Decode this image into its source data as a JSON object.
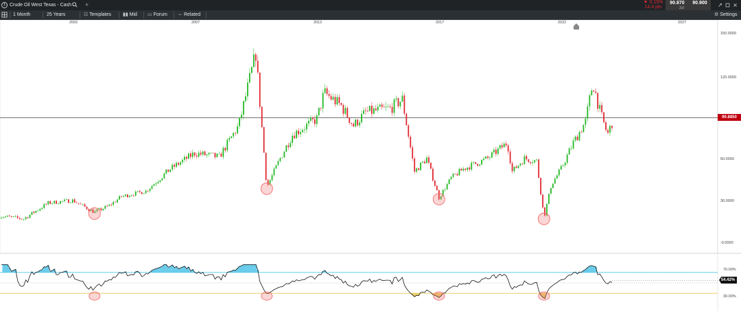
{
  "header": {
    "instrument_number": "1",
    "instrument": "Crude Oil West Texas - Cash",
    "add_tab": "+",
    "change_pct": "0.15%",
    "change_pips": "14.4 pts",
    "sell_price": "90.870",
    "spread": "3.0",
    "buy_price": "90.900"
  },
  "toolbar": {
    "interval": "1 Month",
    "range": "25 Years",
    "templates": "Templates",
    "mid": "Mid",
    "forum": "Forum",
    "related": "Related",
    "settings": "Settings"
  },
  "years": [
    "2002",
    "2007",
    "2012",
    "2017",
    "2022",
    "2027"
  ],
  "price_axis": [
    "150.0000",
    "120.0000",
    "60.0000",
    "30.0000",
    "-0.0000"
  ],
  "current_price_label": "90.8850",
  "rsi_axis": [
    "70.00%",
    "30.00%"
  ],
  "rsi_current_label": "54.42%",
  "colors": {
    "up": "#22b822",
    "down": "#e0262f",
    "rsi_overbought": "#4fc3e8",
    "rsi_oversold": "#e8c84f",
    "highlight": "#f26b6b",
    "price_tag": "#c0000f"
  },
  "chart_data": {
    "type": "candlestick",
    "x_start": "1998-01",
    "x_end": "2027-06",
    "interval": "monthly",
    "ylim": [
      -5,
      155
    ],
    "rsi_levels": [
      70,
      30
    ],
    "current_price": 90.885,
    "current_rsi": 54.42,
    "price_path": [
      [
        1998.0,
        16
      ],
      [
        1999.0,
        14
      ],
      [
        2000.0,
        26
      ],
      [
        2001.0,
        28
      ],
      [
        2001.9,
        19
      ],
      [
        2002.5,
        24
      ],
      [
        2003.0,
        31
      ],
      [
        2004.0,
        35
      ],
      [
        2005.0,
        52
      ],
      [
        2006.0,
        64
      ],
      [
        2007.0,
        61
      ],
      [
        2007.8,
        85
      ],
      [
        2008.5,
        140
      ],
      [
        2008.95,
        38
      ],
      [
        2009.5,
        60
      ],
      [
        2010.0,
        78
      ],
      [
        2011.0,
        90
      ],
      [
        2011.3,
        110
      ],
      [
        2012.0,
        100
      ],
      [
        2012.5,
        85
      ],
      [
        2013.0,
        95
      ],
      [
        2014.0,
        98
      ],
      [
        2014.5,
        105
      ],
      [
        2015.0,
        50
      ],
      [
        2015.5,
        60
      ],
      [
        2016.0,
        30
      ],
      [
        2016.5,
        45
      ],
      [
        2017.0,
        52
      ],
      [
        2018.0,
        60
      ],
      [
        2018.8,
        72
      ],
      [
        2019.0,
        50
      ],
      [
        2019.5,
        60
      ],
      [
        2020.0,
        58
      ],
      [
        2020.3,
        15
      ],
      [
        2020.6,
        40
      ],
      [
        2021.0,
        52
      ],
      [
        2021.5,
        72
      ],
      [
        2022.0,
        88
      ],
      [
        2022.3,
        118
      ],
      [
        2022.6,
        95
      ],
      [
        2022.9,
        78
      ],
      [
        2023.1,
        88
      ]
    ],
    "highlighted_lows": [
      2001.9,
      2008.95,
      2016.0,
      2020.3
    ]
  }
}
